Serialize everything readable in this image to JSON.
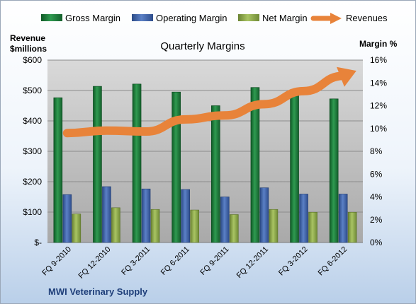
{
  "chart_data": {
    "type": "bar",
    "title": "Quarterly Margins",
    "left_axis_label": [
      "Revenue",
      "$millions"
    ],
    "right_axis_label": "Margin %",
    "footer": "MWI Veterinary Supply",
    "categories": [
      "FQ 9-2010",
      "FQ 12-2010",
      "FQ 3-2011",
      "FQ 6-2011",
      "FQ 9-2011",
      "FQ 12-2011",
      "FQ 3-2012",
      "FQ 6-2012"
    ],
    "left_axis": {
      "min": 0,
      "max": 600,
      "step": 100,
      "ticks": [
        "$-",
        "$100",
        "$200",
        "$300",
        "$400",
        "$500",
        "$600"
      ]
    },
    "right_axis": {
      "min": 0,
      "max": 16,
      "step": 2,
      "ticks": [
        "0%",
        "2%",
        "4%",
        "6%",
        "8%",
        "10%",
        "12%",
        "14%",
        "16%"
      ]
    },
    "series": [
      {
        "name": "Gross Margin",
        "axis": "right",
        "color": "#1e7a3c",
        "values": [
          12.7,
          13.7,
          13.9,
          13.2,
          12.0,
          13.6,
          13.1,
          12.6
        ]
      },
      {
        "name": "Operating Margin",
        "axis": "right",
        "color": "#3f62a8",
        "values": [
          4.2,
          4.9,
          4.7,
          4.65,
          4.0,
          4.8,
          4.25,
          4.25
        ]
      },
      {
        "name": "Net Margin",
        "axis": "right",
        "color": "#8da84a",
        "values": [
          2.5,
          3.05,
          2.9,
          2.85,
          2.45,
          2.9,
          2.65,
          2.65
        ]
      },
      {
        "name": "Revenues",
        "axis": "left",
        "type": "line",
        "color": "#e8833a",
        "values": [
          360,
          368,
          365,
          405,
          418,
          455,
          498,
          548
        ]
      }
    ],
    "grid": true,
    "legend_position": "top"
  }
}
